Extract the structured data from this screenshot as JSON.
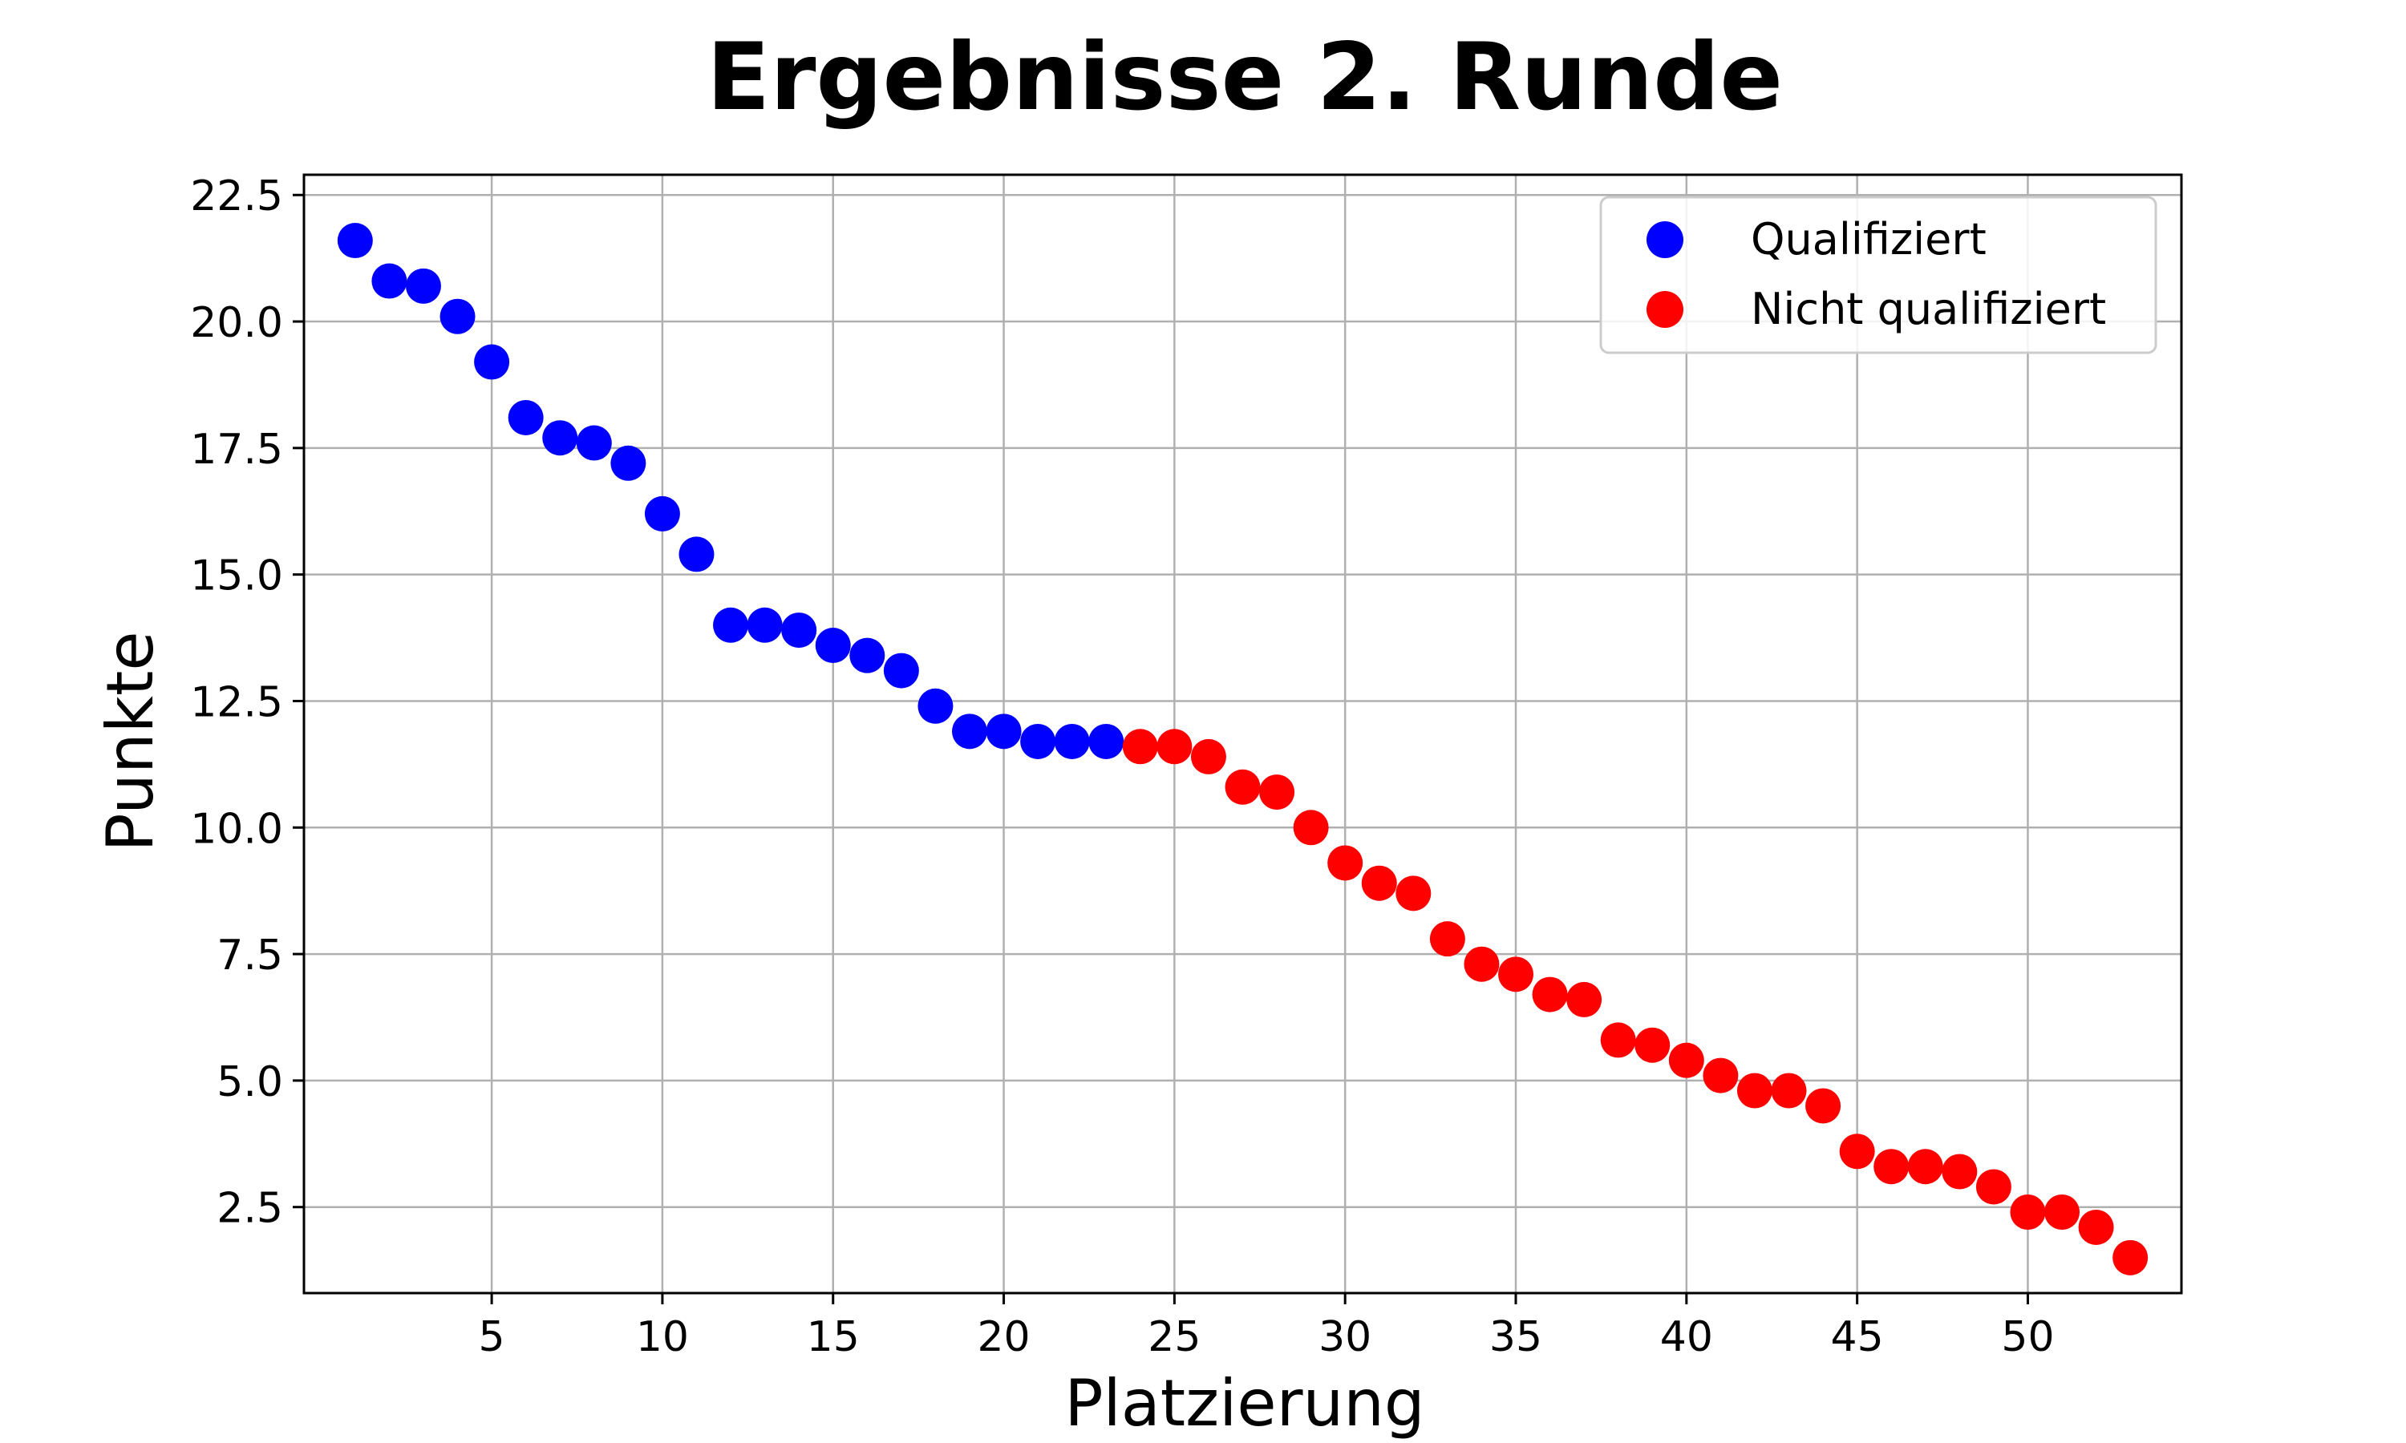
{
  "chart_data": {
    "type": "scatter",
    "title": "Ergebnisse 2. Runde",
    "xlabel": "Platzierung",
    "ylabel": "Punkte",
    "xlim": [
      -0.5,
      54.5
    ],
    "ylim": [
      0.8,
      22.9
    ],
    "xticks": [
      5,
      10,
      15,
      20,
      25,
      30,
      35,
      40,
      45,
      50
    ],
    "yticks": [
      2.5,
      5.0,
      7.5,
      10.0,
      12.5,
      15.0,
      17.5,
      20.0,
      22.5
    ],
    "xtick_labels": [
      "5",
      "10",
      "15",
      "20",
      "25",
      "30",
      "35",
      "40",
      "45",
      "50"
    ],
    "ytick_labels": [
      "2.5",
      "5.0",
      "7.5",
      "10.0",
      "12.5",
      "15.0",
      "17.5",
      "20.0",
      "22.5"
    ],
    "grid": true,
    "legend_position": "top-right",
    "series": [
      {
        "name": "Qualifiziert",
        "color": "#0000ff",
        "x": [
          1,
          2,
          3,
          4,
          5,
          6,
          7,
          8,
          9,
          10,
          11,
          12,
          13,
          14,
          15,
          16,
          17,
          18,
          19,
          20,
          21,
          22,
          23
        ],
        "y": [
          21.6,
          20.8,
          20.7,
          20.1,
          19.2,
          18.1,
          17.7,
          17.6,
          17.2,
          16.2,
          15.4,
          14.0,
          14.0,
          13.9,
          13.6,
          13.4,
          13.1,
          12.4,
          11.9,
          11.9,
          11.7,
          11.7,
          11.7
        ]
      },
      {
        "name": "Nicht qualifiziert",
        "color": "#ff0000",
        "x": [
          24,
          25,
          26,
          27,
          28,
          29,
          30,
          31,
          32,
          33,
          34,
          35,
          36,
          37,
          38,
          39,
          40,
          41,
          42,
          43,
          44,
          45,
          46,
          47,
          48,
          49,
          50,
          51,
          52,
          53
        ],
        "y": [
          11.6,
          11.6,
          11.4,
          10.8,
          10.7,
          10.0,
          9.3,
          8.9,
          8.7,
          7.8,
          7.3,
          7.1,
          6.7,
          6.6,
          5.8,
          5.7,
          5.4,
          5.1,
          4.8,
          4.8,
          4.5,
          3.6,
          3.3,
          3.3,
          3.2,
          2.9,
          2.4,
          2.4,
          2.1,
          1.5
        ]
      }
    ]
  }
}
